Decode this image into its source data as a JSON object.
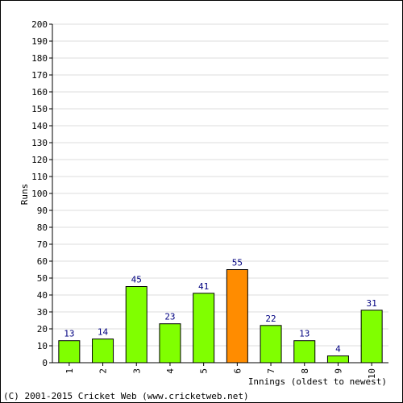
{
  "chart_data": {
    "type": "bar",
    "categories": [
      "1",
      "2",
      "3",
      "4",
      "5",
      "6",
      "7",
      "8",
      "9",
      "10"
    ],
    "values": [
      13,
      14,
      45,
      23,
      41,
      55,
      22,
      13,
      4,
      31
    ],
    "highlight_index": 5,
    "bar_color": "#80ff00",
    "highlight_color": "#ff8c00",
    "value_label_color": "#000080",
    "grid_color": "#dcdcdc",
    "ylim": [
      0,
      200
    ],
    "ytick_step": 10,
    "grid": true,
    "title": "",
    "xlabel": "Innings (oldest to newest)",
    "ylabel": "Runs"
  },
  "footer": {
    "copyright": "(C) 2001-2015 Cricket Web (www.cricketweb.net)"
  }
}
